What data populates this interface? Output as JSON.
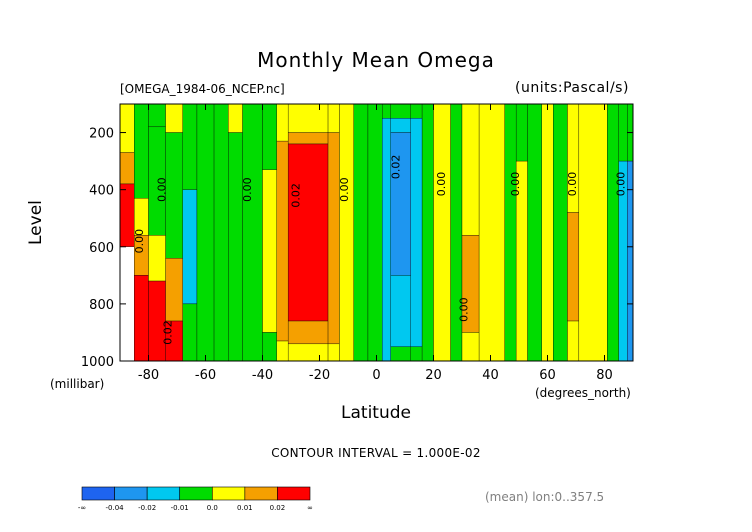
{
  "header": {
    "title": "Monthly Mean Omega",
    "filename": "[OMEGA_1984-06_NCEP.nc]",
    "units": "(units:Pascal/s)"
  },
  "footer": {
    "contour_interval": "CONTOUR INTERVAL = 1.000E-02",
    "mean_note": "(mean) lon:0..357.5"
  },
  "chart_data": {
    "type": "heatmap",
    "title": "Monthly Mean Omega",
    "xlabel": "Latitude",
    "ylabel": "Level",
    "x_units": "(degrees_north)",
    "y_units": "(millibar)",
    "xlim": [
      -90,
      90
    ],
    "ylim": [
      1000,
      100
    ],
    "y_scale": "linear",
    "x_ticks": [
      -80,
      -60,
      -40,
      -20,
      0,
      20,
      40,
      60,
      80
    ],
    "x_tick_labels": [
      "-80",
      "-60",
      "-40",
      "-20",
      "0",
      "20",
      "40",
      "60",
      "80"
    ],
    "y_ticks": [
      200,
      400,
      600,
      800,
      1000
    ],
    "y_tick_labels": [
      "200",
      "400",
      "600",
      "800",
      "1000"
    ],
    "colorbar": {
      "labels": [
        "-∞",
        "-0.04",
        "-0.02",
        "-0.01",
        "0.0",
        "0.01",
        "0.02",
        "∞"
      ],
      "colors": [
        "#1e64f0",
        "#1e96f0",
        "#00c8f0",
        "#00dc00",
        "#ffff00",
        "#f5a000",
        "#ff0000"
      ]
    },
    "missing_region": "below ground near 80-90S (white)",
    "contour_labels": [
      {
        "text": "0.00",
        "lat": -74,
        "lev": 400
      },
      {
        "text": "0.00",
        "lat": -82,
        "lev": 580
      },
      {
        "text": "0.02",
        "lat": -72,
        "lev": 900
      },
      {
        "text": "0.00",
        "lat": -44,
        "lev": 400
      },
      {
        "text": "0.02",
        "lat": -27,
        "lev": 420
      },
      {
        "text": "0.00",
        "lat": -10,
        "lev": 400
      },
      {
        "text": "0.02",
        "lat": 8,
        "lev": 320
      },
      {
        "text": "0.00",
        "lat": 24,
        "lev": 380
      },
      {
        "text": "0.00",
        "lat": 32,
        "lev": 820
      },
      {
        "text": "0.00",
        "lat": 50,
        "lev": 380
      },
      {
        "text": "0.00",
        "lat": 70,
        "lev": 380
      },
      {
        "text": "0.00",
        "lat": 87,
        "lev": 380
      }
    ],
    "cells": [
      {
        "lat": [
          -90,
          -85
        ],
        "lev": [
          100,
          270
        ],
        "v": "0.01"
      },
      {
        "lat": [
          -90,
          -85
        ],
        "lev": [
          270,
          380
        ],
        "v": "0.02"
      },
      {
        "lat": [
          -90,
          -85
        ],
        "lev": [
          380,
          600
        ],
        "v": ">0.02"
      },
      {
        "lat": [
          -90,
          -85
        ],
        "lev": [
          600,
          1000
        ],
        "v": "missing"
      },
      {
        "lat": [
          -85,
          -80
        ],
        "lev": [
          100,
          430
        ],
        "v": "0.0"
      },
      {
        "lat": [
          -85,
          -80
        ],
        "lev": [
          430,
          560
        ],
        "v": "0.01"
      },
      {
        "lat": [
          -85,
          -80
        ],
        "lev": [
          560,
          700
        ],
        "v": "0.02"
      },
      {
        "lat": [
          -85,
          -80
        ],
        "lev": [
          700,
          1000
        ],
        "v": ">0.02"
      },
      {
        "lat": [
          -80,
          -74
        ],
        "lev": [
          100,
          180
        ],
        "v": "0.0"
      },
      {
        "lat": [
          -80,
          -74
        ],
        "lev": [
          180,
          560
        ],
        "v": "0.0"
      },
      {
        "lat": [
          -80,
          -74
        ],
        "lev": [
          560,
          720
        ],
        "v": "0.01"
      },
      {
        "lat": [
          -80,
          -74
        ],
        "lev": [
          720,
          1000
        ],
        "v": ">0.02"
      },
      {
        "lat": [
          -74,
          -68
        ],
        "lev": [
          100,
          200
        ],
        "v": "0.01"
      },
      {
        "lat": [
          -74,
          -68
        ],
        "lev": [
          200,
          640
        ],
        "v": "0.0"
      },
      {
        "lat": [
          -74,
          -68
        ],
        "lev": [
          640,
          860
        ],
        "v": "0.02"
      },
      {
        "lat": [
          -74,
          -68
        ],
        "lev": [
          860,
          1000
        ],
        "v": ">0.02"
      },
      {
        "lat": [
          -68,
          -63
        ],
        "lev": [
          100,
          400
        ],
        "v": "0.0"
      },
      {
        "lat": [
          -68,
          -63
        ],
        "lev": [
          400,
          800
        ],
        "v": "-0.01"
      },
      {
        "lat": [
          -68,
          -63
        ],
        "lev": [
          800,
          1000
        ],
        "v": "0.0"
      },
      {
        "lat": [
          -63,
          -57
        ],
        "lev": [
          100,
          1000
        ],
        "v": "0.0"
      },
      {
        "lat": [
          -57,
          -52
        ],
        "lev": [
          100,
          1000
        ],
        "v": "0.0"
      },
      {
        "lat": [
          -52,
          -47
        ],
        "lev": [
          100,
          200
        ],
        "v": "0.01"
      },
      {
        "lat": [
          -52,
          -47
        ],
        "lev": [
          200,
          1000
        ],
        "v": "0.0"
      },
      {
        "lat": [
          -47,
          -40
        ],
        "lev": [
          100,
          1000
        ],
        "v": "0.0"
      },
      {
        "lat": [
          -40,
          -35
        ],
        "lev": [
          100,
          330
        ],
        "v": "0.0"
      },
      {
        "lat": [
          -40,
          -35
        ],
        "lev": [
          330,
          900
        ],
        "v": "0.01"
      },
      {
        "lat": [
          -40,
          -35
        ],
        "lev": [
          900,
          1000
        ],
        "v": "0.0"
      },
      {
        "lat": [
          -35,
          -31
        ],
        "lev": [
          100,
          230
        ],
        "v": "0.01"
      },
      {
        "lat": [
          -35,
          -31
        ],
        "lev": [
          230,
          930
        ],
        "v": "0.02"
      },
      {
        "lat": [
          -35,
          -31
        ],
        "lev": [
          930,
          1000
        ],
        "v": "0.01"
      },
      {
        "lat": [
          -31,
          -17
        ],
        "lev": [
          100,
          200
        ],
        "v": "0.01"
      },
      {
        "lat": [
          -31,
          -17
        ],
        "lev": [
          200,
          240
        ],
        "v": "0.02"
      },
      {
        "lat": [
          -31,
          -17
        ],
        "lev": [
          240,
          860
        ],
        "v": ">0.02"
      },
      {
        "lat": [
          -31,
          -17
        ],
        "lev": [
          860,
          940
        ],
        "v": "0.02"
      },
      {
        "lat": [
          -31,
          -17
        ],
        "lev": [
          940,
          1000
        ],
        "v": "0.01"
      },
      {
        "lat": [
          -17,
          -13
        ],
        "lev": [
          100,
          200
        ],
        "v": "0.01"
      },
      {
        "lat": [
          -17,
          -13
        ],
        "lev": [
          200,
          940
        ],
        "v": "0.02"
      },
      {
        "lat": [
          -17,
          -13
        ],
        "lev": [
          940,
          1000
        ],
        "v": "0.01"
      },
      {
        "lat": [
          -13,
          -8
        ],
        "lev": [
          100,
          1000
        ],
        "v": "0.01"
      },
      {
        "lat": [
          -8,
          -3
        ],
        "lev": [
          100,
          1000
        ],
        "v": "0.0"
      },
      {
        "lat": [
          -3,
          2
        ],
        "lev": [
          100,
          1000
        ],
        "v": "0.0"
      },
      {
        "lat": [
          2,
          5
        ],
        "lev": [
          100,
          150
        ],
        "v": "0.0"
      },
      {
        "lat": [
          2,
          5
        ],
        "lev": [
          150,
          1000
        ],
        "v": "-0.01"
      },
      {
        "lat": [
          5,
          12
        ],
        "lev": [
          100,
          150
        ],
        "v": "0.0"
      },
      {
        "lat": [
          5,
          12
        ],
        "lev": [
          150,
          200
        ],
        "v": "-0.01"
      },
      {
        "lat": [
          5,
          12
        ],
        "lev": [
          200,
          700
        ],
        "v": "-0.02"
      },
      {
        "lat": [
          5,
          12
        ],
        "lev": [
          700,
          950
        ],
        "v": "-0.01"
      },
      {
        "lat": [
          5,
          12
        ],
        "lev": [
          950,
          1000
        ],
        "v": "0.0"
      },
      {
        "lat": [
          12,
          16
        ],
        "lev": [
          100,
          150
        ],
        "v": "0.0"
      },
      {
        "lat": [
          12,
          16
        ],
        "lev": [
          150,
          950
        ],
        "v": "-0.01"
      },
      {
        "lat": [
          12,
          16
        ],
        "lev": [
          950,
          1000
        ],
        "v": "0.0"
      },
      {
        "lat": [
          16,
          20
        ],
        "lev": [
          100,
          1000
        ],
        "v": "0.0"
      },
      {
        "lat": [
          20,
          26
        ],
        "lev": [
          100,
          1000
        ],
        "v": "0.01"
      },
      {
        "lat": [
          26,
          30
        ],
        "lev": [
          100,
          1000
        ],
        "v": "0.0"
      },
      {
        "lat": [
          30,
          36
        ],
        "lev": [
          100,
          560
        ],
        "v": "0.01"
      },
      {
        "lat": [
          30,
          36
        ],
        "lev": [
          560,
          900
        ],
        "v": "0.02"
      },
      {
        "lat": [
          30,
          36
        ],
        "lev": [
          900,
          1000
        ],
        "v": "0.01"
      },
      {
        "lat": [
          36,
          45
        ],
        "lev": [
          100,
          1000
        ],
        "v": "0.01"
      },
      {
        "lat": [
          45,
          49
        ],
        "lev": [
          100,
          1000
        ],
        "v": "0.0"
      },
      {
        "lat": [
          49,
          53
        ],
        "lev": [
          100,
          300
        ],
        "v": "0.0"
      },
      {
        "lat": [
          49,
          53
        ],
        "lev": [
          300,
          1000
        ],
        "v": "0.01"
      },
      {
        "lat": [
          53,
          58
        ],
        "lev": [
          100,
          1000
        ],
        "v": "0.0"
      },
      {
        "lat": [
          58,
          62
        ],
        "lev": [
          100,
          1000
        ],
        "v": "0.01"
      },
      {
        "lat": [
          62,
          67
        ],
        "lev": [
          100,
          1000
        ],
        "v": "0.0"
      },
      {
        "lat": [
          67,
          71
        ],
        "lev": [
          100,
          480
        ],
        "v": "0.01"
      },
      {
        "lat": [
          67,
          71
        ],
        "lev": [
          480,
          860
        ],
        "v": "0.02"
      },
      {
        "lat": [
          67,
          71
        ],
        "lev": [
          860,
          1000
        ],
        "v": "0.01"
      },
      {
        "lat": [
          71,
          81
        ],
        "lev": [
          100,
          1000
        ],
        "v": "0.01"
      },
      {
        "lat": [
          81,
          85
        ],
        "lev": [
          100,
          1000
        ],
        "v": "0.0"
      },
      {
        "lat": [
          85,
          88
        ],
        "lev": [
          100,
          300
        ],
        "v": "0.0"
      },
      {
        "lat": [
          85,
          88
        ],
        "lev": [
          300,
          1000
        ],
        "v": "-0.01"
      },
      {
        "lat": [
          88,
          90
        ],
        "lev": [
          100,
          300
        ],
        "v": "0.0"
      },
      {
        "lat": [
          88,
          90
        ],
        "lev": [
          300,
          1000
        ],
        "v": "-0.02"
      }
    ]
  }
}
